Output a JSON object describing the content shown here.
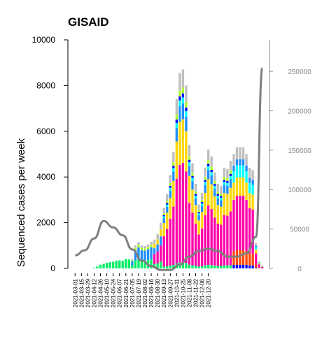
{
  "chart_data": {
    "type": "bar",
    "title": "GISAID",
    "ylabel": "Sequenced cases per week",
    "ylim": [
      0,
      10000
    ],
    "yticks": [
      0,
      2000,
      4000,
      6000,
      8000,
      10000
    ],
    "y2lim": [
      0,
      290000
    ],
    "y2ticks": [
      0,
      50000,
      100000,
      150000,
      200000,
      250000
    ],
    "xtick_labels": [
      "2021-03-01",
      "2021-03-15",
      "2021-03-29",
      "2021-04-12",
      "2021-04-26",
      "2021-05-10",
      "2021-05-24",
      "2021-06-07",
      "2021-06-21",
      "2021-07-05",
      "2021-07-19",
      "2021-08-02",
      "2021-08-16",
      "2021-08-30",
      "2021-09-13",
      "2021-09-27",
      "2021-10-11",
      "2021-10-25",
      "2021-11-08",
      "2021-11-22",
      "2021-12-06",
      "2021-12-20"
    ],
    "palette": [
      "#00ee66",
      "#1e90ff",
      "#ff00aa",
      "#ffd700",
      "#ffa500",
      "#00ffff",
      "#ff4500",
      "#0000ff",
      "#adff2f",
      "#808080",
      "#bebebe"
    ],
    "stacked_totals": [
      0,
      0,
      0,
      0,
      0,
      0,
      30,
      80,
      160,
      200,
      240,
      270,
      290,
      340,
      350,
      340,
      410,
      390,
      400,
      1010,
      1150,
      1000,
      980,
      1060,
      1160,
      1260,
      1500,
      2000,
      2650,
      3250,
      4100,
      5100,
      7400,
      8550,
      8700,
      8000,
      5400,
      4600,
      3700,
      2800,
      3300,
      4400,
      5200,
      4900,
      4200,
      3700,
      3600,
      4400,
      4350,
      4700,
      5000,
      5300,
      5300,
      5300,
      5000,
      4400,
      4300,
      1100,
      300,
      100
    ],
    "line_x_index": [
      0,
      3,
      6,
      9,
      12,
      15,
      18,
      21,
      24,
      27,
      30,
      33,
      36,
      39,
      42,
      45,
      48,
      51,
      54,
      57,
      59
    ],
    "line_values": [
      16500,
      23000,
      38000,
      60000,
      52000,
      42000,
      24000,
      10000,
      3000,
      -2000,
      -2000,
      5000,
      15000,
      22000,
      25000,
      22000,
      15000,
      15000,
      19000,
      40000,
      254000
    ]
  }
}
